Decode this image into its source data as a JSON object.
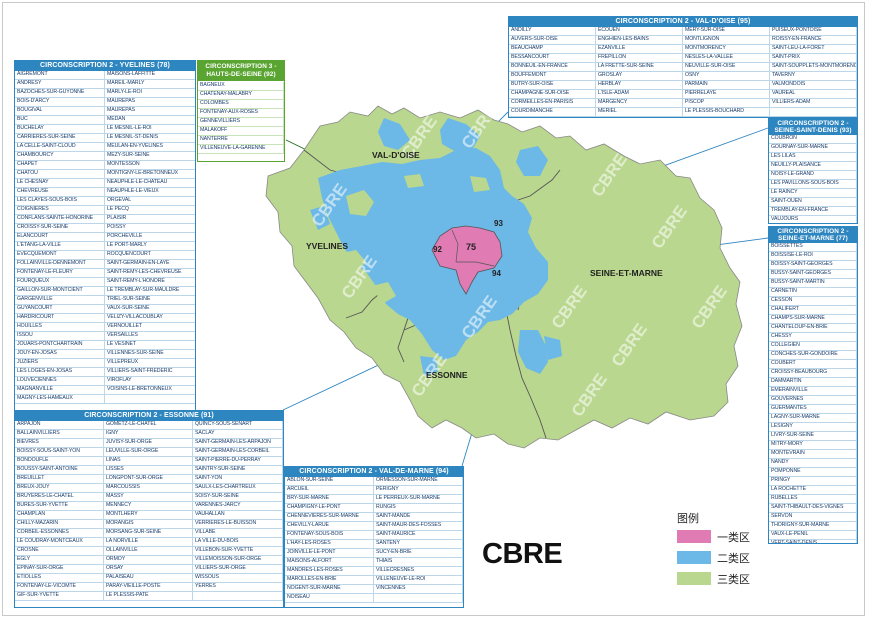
{
  "colors": {
    "class1": "#e07bb4",
    "class2": "#6cb8e6",
    "class3": "#b9d78f",
    "panel": "#2e86c1",
    "panel_green": "#5aa532",
    "watermark": "#ffffff"
  },
  "map": {
    "labels": {
      "val_doise": "VAL-D'OISE",
      "yvelines": "YVELINES",
      "essonne": "ESSONNE",
      "seine_et_marne": "SEINE-ET-MARNE",
      "n92": "92",
      "n75": "75",
      "n93": "93",
      "n94": "94"
    },
    "watermark": "CBRE"
  },
  "logo": "CBRE",
  "legend": {
    "title": "图例",
    "items": [
      {
        "label": "一类区",
        "color": "#e07bb4"
      },
      {
        "label": "二类区",
        "color": "#6cb8e6"
      },
      {
        "label": "三类区",
        "color": "#b9d78f"
      }
    ]
  },
  "panels": {
    "yvelines": {
      "title": "CIRCONSCRIPTION 2 - YVELINES (78)",
      "cells": [
        "AIGREMONT",
        "MAISONS-LAFFITTE",
        "ANDRESY",
        "MAREIL-MARLY",
        "BAZOCHES-SUR-GUYONNE",
        "MARLY-LE-ROI",
        "BOIS-D'ARCY",
        "MAUREPAS",
        "BOUGIVAL",
        "MAUREPAS",
        "BUC",
        "MEDAN",
        "BUCHELAY",
        "LE MESNIL-LE-ROI",
        "CARRIERES-SUR-SEINE",
        "LE MESNIL-ST-DENIS",
        "LA CELLE-SAINT-CLOUD",
        "MEULAN-EN-YVELINES",
        "CHAMBOURCY",
        "MEZY-SUR-SEINE",
        "CHAPET",
        "MONTESSON",
        "CHATOU",
        "MONTIGNY-LE-BRETONNEUX",
        "LE CHESNAY",
        "NEAUPHLE-LE-CHATEAU",
        "CHEVREUSE",
        "NEAUPHLE-LE-VIEUX",
        "LES CLAYES-SOUS-BOIS",
        "ORGEVAL",
        "COIGNIERES",
        "LE PECQ",
        "CONFLANS-SAINTE-HONORINE",
        "PLAISIR",
        "CROISSY-SUR-SEINE",
        "POISSY",
        "ELANCOURT",
        "PORCHEVILLE",
        "L'ETANG-LA-VILLE",
        "LE PORT-MARLY",
        "EVECQUEMONT",
        "ROCQUENCOURT",
        "FOLLAINVILLE-DENNEMONT",
        "SAINT-GERMAIN-EN-LAYE",
        "FONTENAY-LE-FLEURY",
        "SAINT-REMY-LES-CHEVREUSE",
        "FOURQUEUX",
        "SAINT-REMY-L'HONORE",
        "GAILLON-SUR-MONTCIENT",
        "LE TREMBLAY-SUR-MAULDRE",
        "GARGENVILLE",
        "TRIEL-SUR-SEINE",
        "GUYANCOURT",
        "VAUX-SUR-SEINE",
        "HARDRICOURT",
        "VELIZY-VILLACOUBLAY",
        "HOUILLES",
        "VERNOUILLET",
        "ISSOU",
        "VERSAILLES",
        "JOUARS-PONTCHARTRAIN",
        "LE VESINET",
        "JOUY-EN-JOSAS",
        "VILLENNES-SUR-SEINE",
        "JUZIERS",
        "VILLEPREUX",
        "LES LOGES-EN-JOSAS",
        "VILLIERS-SAINT-FREDERIC",
        "LOUVECIENNES",
        "VIROFLAY",
        "MAGNANVILLE",
        "VOISINS-LE-BRETONNEUX",
        "MAGNY-LES-HAMEAUX",
        ""
      ]
    },
    "hds": {
      "title": "CIRCONSCRIPTION 3 - HAUTS-DE-SEINE (92)",
      "cells": [
        "BAGNEUX",
        "CHATENAY-MALABRY",
        "COLOMBES",
        "FONTENAY-AUX-ROSES",
        "GENNEVILLIERS",
        "MALAKOFF",
        "NANTERRE",
        "VILLENEUVE-LA-GARENNE"
      ]
    },
    "valdoise": {
      "title": "CIRCONSCRIPTION 2 - VAL-D'OISE (95)",
      "cells": [
        "ANDILLY",
        "ECOUEN",
        "MERY-SUR-OISE",
        "PUISEUX-PONTOISE",
        "AUVERS-SUR-OISE",
        "ENGHIEN-LES-BAINS",
        "MONTLIGNON",
        "ROISSY-EN-FRANCE",
        "BEAUCHAMP",
        "EZANVILLE",
        "MONTMORENCY",
        "SAINT-LEU-LA-FORET",
        "BESSANCOURT",
        "FREPILLON",
        "NESLES-LA-VALLEE",
        "SAINT-PRIX",
        "BONNEUIL-EN-FRANCE",
        "LA FRETTE-SUR-SEINE",
        "NEUVILLE-SUR-OISE",
        "SAINT-SOUPPLETS-MONTMORENCY",
        "BOUFFEMONT",
        "GROSLAY",
        "OSNY",
        "TAVERNY",
        "BUTRY-SUR-OISE",
        "HERBLAY",
        "PARMAIN",
        "VALMONDOIS",
        "CHAMPAGNE-SUR-OISE",
        "L'ISLE-ADAM",
        "PIERRELAYE",
        "VAUREAL",
        "CORMEILLES-EN-PARISIS",
        "MARGENCY",
        "PISCOP",
        "VILLIERS-ADAM",
        "COURDIMANCHE",
        "MERIEL",
        "LE PLESSIS-BOUCHARD",
        ""
      ]
    },
    "ssd": {
      "title": "CIRCONSCRIPTION 2 - SEINE-SAINT-DENIS (93)",
      "cells": [
        "COUBRON",
        "GOURNAY-SUR-MARNE",
        "LES LILAS",
        "NEUILLY-PLAISANCE",
        "NOISY-LE-GRAND",
        "LES PAVILLONS-SOUS-BOIS",
        "LE RAINCY",
        "SAINT-OUEN",
        "TREMBLAY-EN-FRANCE",
        "VAUJOURS"
      ]
    },
    "sem": {
      "title": "CIRCONSCRIPTION 2 - SEINE-ET-MARNE (77)",
      "cells": [
        "BOISSETTES",
        "BOISSISE-LE-ROI",
        "BOISSY-SAINT-GEORGES",
        "BUSSY-SAINT-GEORGES",
        "BUSSY-SAINT-MARTIN",
        "CARNETIN",
        "CESSON",
        "CHALIFERT",
        "CHAMPS-SUR-MARNE",
        "CHANTELOUP-EN-BRIE",
        "CHESSY",
        "COLLEGIEN",
        "CONCHES-SUR-GONDOIRE",
        "COUBERT",
        "CROISSY-BEAUBOURG",
        "DAMMARTIN",
        "EMERAINVILLE",
        "GOUVERNES",
        "GUERMANTES",
        "LAGNY-SUR-MARNE",
        "LESIGNY",
        "LIVRY-SUR-SEINE",
        "MITRY-MORY",
        "MONTEVRAIN",
        "NANDY",
        "POMPONNE",
        "PRINGY",
        "LA ROCHETTE",
        "RUBELLES",
        "SAINT-THIBAULT-DES-VIGNES",
        "SERVON",
        "THORIGNY-SUR-MARNE",
        "VAUX-LE-PENIL",
        "VERT-SAINT-DENIS"
      ]
    },
    "essonne": {
      "title": "CIRCONSCRIPTION 2 - ESSONNE (91)",
      "cells": [
        "ARPAJON",
        "GOMETZ-LE-CHATEL",
        "QUINCY-SOUS-SENART",
        "BALLAINVILLIERS",
        "IGNY",
        "SACLAY",
        "BIEVRES",
        "JUVISY-SUR-ORGE",
        "SAINT-GERMAIN-LES-ARPAJON",
        "BOISSY-SOUS-SAINT-YON",
        "LEUVILLE-SUR-ORGE",
        "SAINT-GERMAIN-LES-CORBEIL",
        "BONDOUFLE",
        "LINAS",
        "SAINT-PIERRE-DU-PERRAY",
        "BOUSSY-SAINT-ANTOINE",
        "LISSES",
        "SAINTRY-SUR-SEINE",
        "BREUILLET",
        "LONGPONT-SUR-ORGE",
        "SAINT-YON",
        "BREUX-JOUY",
        "MARCOUSSIS",
        "SAULX-LES-CHARTREUX",
        "BRUYERES-LE-CHATEL",
        "MASSY",
        "SOISY-SUR-SEINE",
        "BURES-SUR-YVETTE",
        "MENNECY",
        "VARENNES-JARCY",
        "CHAMPLAN",
        "MONTLHERY",
        "VAUHALLAN",
        "CHILLY-MAZARIN",
        "MORANGIS",
        "VERRIERES-LE-BUISSON",
        "CORBEIL-ESSONNES",
        "MORSANG-SUR-SEINE",
        "VILLABE",
        "LE COUDRAY-MONTCEAUX",
        "LA NORVILLE",
        "LA VILLE-DU-BOIS",
        "CROSNE",
        "OLLAINVILLE",
        "VILLEBON-SUR-YVETTE",
        "EGLY",
        "ORMOY",
        "VILLEMOISSON-SUR-ORGE",
        "EPINAY-SUR-ORGE",
        "ORSAY",
        "VILLIERS-SUR-ORGE",
        "ETIOLLES",
        "PALAISEAU",
        "WISSOUS",
        "FONTENAY-LE-VICOMTE",
        "PARAY-VIEILLE-POSTE",
        "YERRES",
        "GIF-SUR-YVETTE",
        "LE PLESSIS-PATE",
        ""
      ]
    },
    "vdm": {
      "title": "CIRCONSCRIPTION 2 - VAL-DE-MARNE (94)",
      "cells": [
        "ABLON-SUR-SEINE",
        "ORMESSON-SUR-MARNE",
        "ARCUEIL",
        "PERIGNY",
        "BRY-SUR-MARNE",
        "LE PERREUX-SUR-MARNE",
        "CHAMPIGNY-LE-PONT",
        "RUNGIS",
        "CHENNEVIERES-SUR-MARNE",
        "SAINT-MANDE",
        "CHEVILLY-LARUE",
        "SAINT-MAUR-DES-FOSSES",
        "FONTENAY-SOUS-BOIS",
        "SAINT-MAURICE",
        "L'HAY-LES-ROSES",
        "SANTENY",
        "JOINVILLE-LE-PONT",
        "SUCY-EN-BRIE",
        "MAISONS-ALFORT",
        "THIAIS",
        "MANDRES-LES-ROSES",
        "VILLECRESNES",
        "MAROLLES-EN-BRIE",
        "VILLENEUVE-LE-ROI",
        "NOGENT-SUR-MARNE",
        "VINCENNES",
        "NOISEAU",
        ""
      ]
    }
  }
}
